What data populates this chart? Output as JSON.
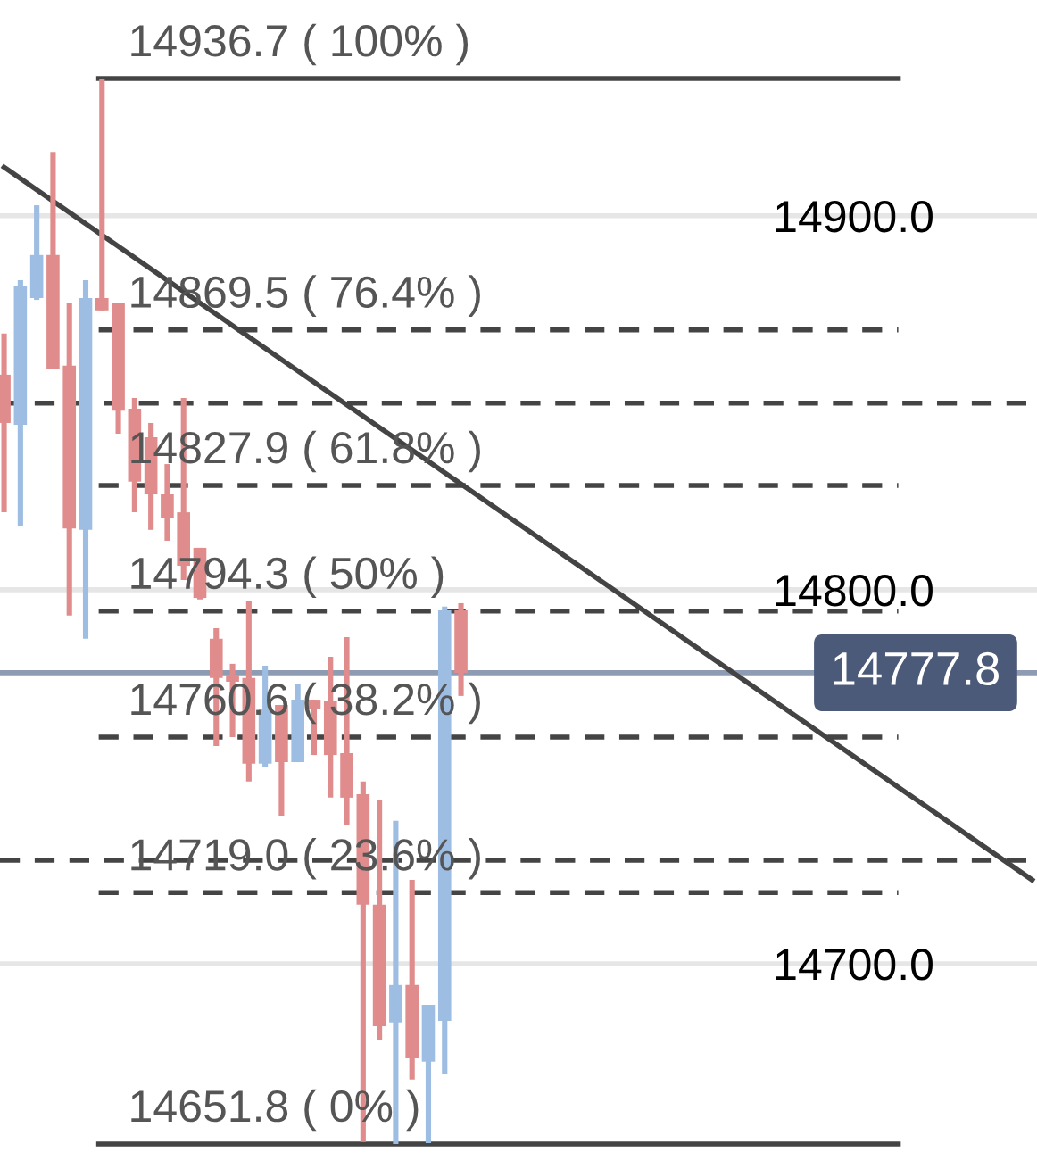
{
  "chart_data": {
    "type": "candlestick",
    "categories": [
      null,
      null,
      null,
      null,
      null,
      null,
      null,
      null,
      null,
      null,
      null,
      null,
      null,
      null,
      null,
      null,
      null,
      null,
      null,
      null,
      null,
      null,
      null,
      null,
      null,
      null,
      null,
      null,
      null,
      null,
      null,
      null,
      null,
      null,
      null,
      null,
      null,
      null,
      null,
      null,
      null,
      null,
      null,
      null,
      null,
      null,
      null,
      null,
      null,
      null,
      null,
      null,
      null,
      null,
      null,
      null,
      null,
      null,
      null,
      null,
      null,
      null,
      null,
      null
    ],
    "ohlc": [
      [
        14857.5,
        14868.5,
        14820.7,
        14844.6
      ],
      [
        14844.1,
        14882.8,
        14816.9,
        14881.3
      ],
      [
        14878.0,
        14902.8,
        14877.5,
        14889.5
      ],
      [
        14889.5,
        14917.1,
        14858.9,
        14858.9
      ],
      [
        14859.9,
        14876.6,
        14793.1,
        14816.4
      ],
      [
        14816.0,
        14882.8,
        14786.9,
        14878.0
      ],
      [
        14878.0,
        14936.7,
        14874.7,
        14874.7
      ],
      [
        14876.6,
        14876.6,
        14841.7,
        14847.9
      ],
      [
        14848.4,
        14851.3,
        14820.7,
        14828.9
      ],
      [
        14840.8,
        14844.6,
        14816.0,
        14825.5
      ],
      [
        14825.5,
        14833.6,
        14813.1,
        14819.3
      ],
      [
        14820.7,
        14851.3,
        14802.6,
        14806.4
      ],
      [
        14811.2,
        14811.2,
        14797.4,
        14797.8
      ],
      [
        14786.9,
        14789.7,
        14758.2,
        14776.4
      ],
      [
        14777.3,
        14780.2,
        14760.6,
        14775.4
      ],
      [
        14776.4,
        14796.9,
        14748.7,
        14753.5
      ],
      [
        14753.5,
        14779.7,
        14752.5,
        14768.2
      ],
      [
        14769.2,
        14769.2,
        14739.6,
        14753.9
      ],
      [
        14753.9,
        14774.9,
        14753.9,
        14770.6
      ],
      [
        14770.6,
        14770.6,
        14755.8,
        14768.2
      ],
      [
        14770.2,
        14782.1,
        14744.4,
        14755.8
      ],
      [
        14756.3,
        14787.3,
        14737.2,
        14744.4
      ],
      [
        14745.3,
        14748.7,
        14652.3,
        14715.8
      ],
      [
        14715.8,
        14743.9,
        14679.5,
        14683.3
      ],
      [
        14684.3,
        14738.2,
        14651.8,
        14694.3
      ],
      [
        14694.3,
        14722.4,
        14669.0,
        14674.7
      ],
      [
        14673.8,
        14689.0,
        14652.0,
        14689.0
      ],
      [
        14684.7,
        14795.5,
        14670.4,
        14794.5
      ],
      [
        14794.5,
        14796.4,
        14771.6,
        14777.8
      ],
      null,
      null,
      null,
      null,
      null,
      null,
      null,
      null,
      null,
      null,
      null,
      null,
      null,
      null,
      null,
      null,
      null,
      null,
      null,
      null,
      null,
      null,
      null,
      null,
      null,
      null,
      null,
      null,
      null,
      null,
      null,
      null,
      null,
      null,
      null
    ],
    "colors": [
      "#e08c8c",
      "#9dbde2",
      "#9dbde2",
      "#e08c8c",
      "#e08c8c",
      "#9dbde2",
      "#e08c8c",
      "#e08c8c",
      "#e08c8c",
      "#e08c8c",
      "#e08c8c",
      "#e08c8c",
      "#e08c8c",
      "#e08c8c",
      "#e08c8c",
      "#e08c8c",
      "#9dbde2",
      "#e08c8c",
      "#9dbde2",
      "#e08c8c",
      "#e08c8c",
      "#e08c8c",
      "#e08c8c",
      "#e08c8c",
      "#9dbde2",
      "#e08c8c",
      "#9dbde2",
      "#9dbde2",
      "#e08c8c",
      null,
      null,
      null,
      null,
      null,
      null,
      null,
      null,
      null,
      null,
      null,
      null,
      null,
      null,
      null,
      null,
      null,
      null,
      null,
      null,
      null,
      null,
      null,
      null,
      null,
      null,
      null,
      null,
      null,
      null,
      null,
      null,
      null,
      null,
      null
    ],
    "series": [
      {
        "type": "line",
        "color": "#444444",
        "values": [
          14913.0,
          null,
          null,
          null,
          null,
          null,
          null,
          null,
          null,
          null,
          null,
          null,
          null,
          null,
          null,
          null,
          null,
          null,
          null,
          null,
          null,
          null,
          null,
          null,
          null,
          null,
          null,
          null,
          null,
          null,
          null,
          null,
          null,
          null,
          null,
          null,
          null,
          null,
          null,
          null,
          null,
          null,
          null,
          null,
          null,
          null,
          null,
          null,
          null,
          null,
          null,
          null,
          null,
          null,
          null,
          null,
          null,
          null,
          null,
          null,
          null,
          null,
          null,
          14722.4
        ]
      }
    ],
    "ylim": [
      14645.1,
      14957.7
    ],
    "yticks": [
      {
        "value": 14700,
        "label": "14700.0"
      },
      {
        "value": 14800,
        "label": "14800.0"
      },
      {
        "value": 14900,
        "label": "14900.0"
      }
    ],
    "grid": "y",
    "tick_labels": "y",
    "ref_lines": [
      {
        "axis": "y",
        "value": 14936.7,
        "label": "14936.7 ( 100% )",
        "color": "#444444",
        "line_style": "solid"
      },
      {
        "axis": "y",
        "value": 14869.5,
        "label": "14869.5 ( 76.4% )",
        "color": "#444444",
        "line_style": "dashed"
      },
      {
        "axis": "y",
        "value": 14827.9,
        "label": "14827.9 ( 61.8% )",
        "color": "#444444",
        "line_style": "dashed"
      },
      {
        "axis": "y",
        "value": 14794.3,
        "label": "14794.3 ( 50% )",
        "color": "#444444",
        "line_style": "dashed"
      },
      {
        "axis": "y",
        "value": 14760.6,
        "label": "14760.6 ( 38.2% )",
        "color": "#444444",
        "line_style": "dashed"
      },
      {
        "axis": "y",
        "value": 14719.0,
        "label": "14719.0 ( 23.6% )",
        "color": "#444444",
        "line_style": "dashed"
      },
      {
        "axis": "y",
        "value": 14651.8,
        "label": "14651.8 ( 0% )",
        "color": "#444444",
        "line_style": "solid"
      },
      {
        "axis": "y",
        "value": 14849.9,
        "color": "#444444",
        "line_style": "dashed"
      },
      {
        "axis": "y",
        "value": 14727.7,
        "color": "#444444",
        "line_style": "dashed"
      },
      {
        "axis": "y",
        "value": 14777.8,
        "color": "#8d9bb3",
        "line_style": "solid"
      }
    ],
    "annotations": [
      {
        "text": "14777.8",
        "y": 14777.8
      }
    ],
    "legend": false
  }
}
